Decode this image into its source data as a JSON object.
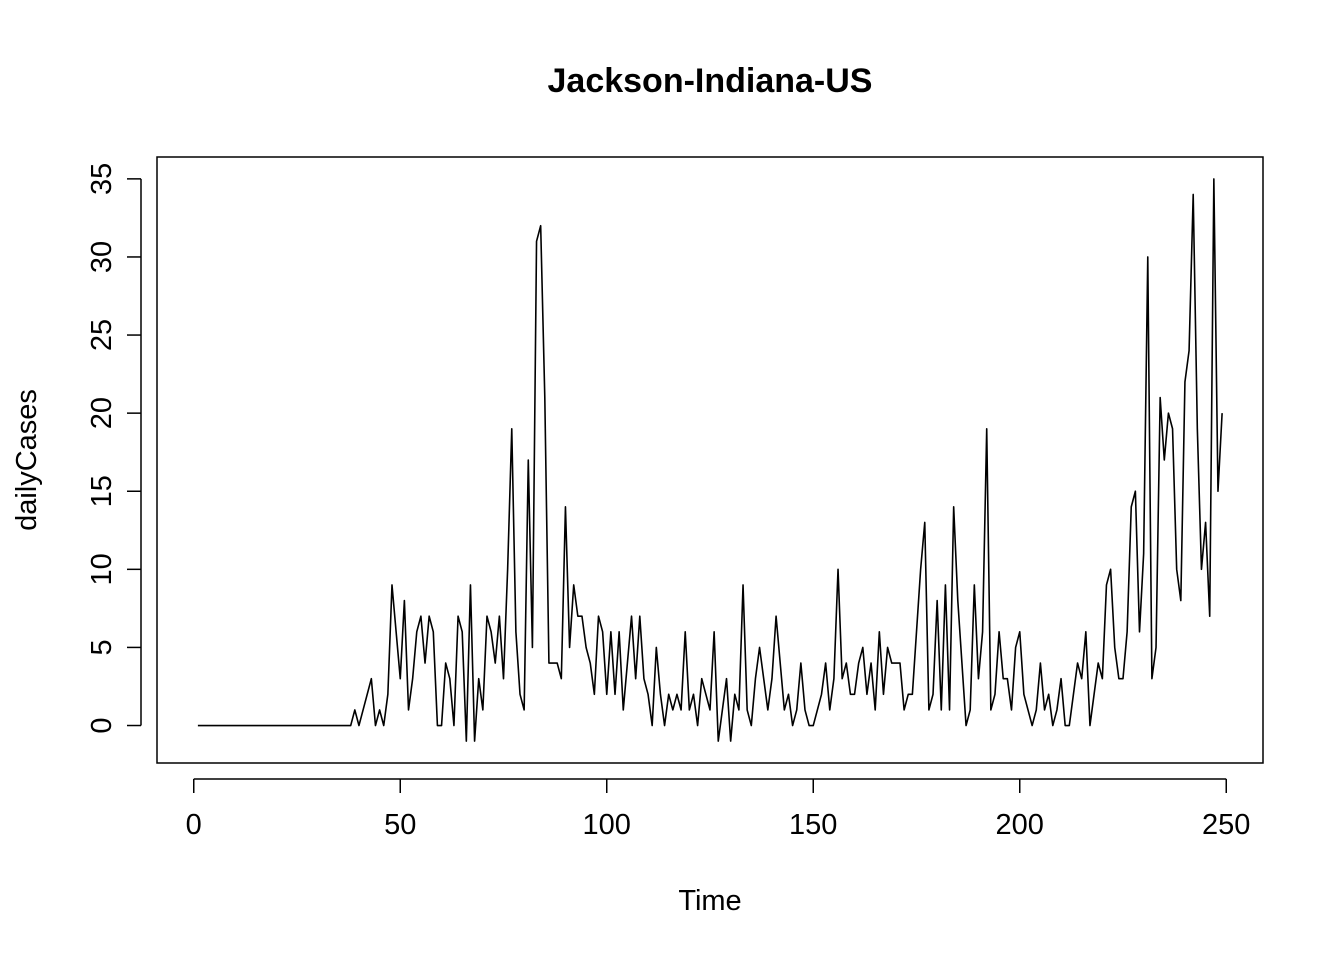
{
  "chart_data": {
    "type": "line",
    "title": "Jackson-Indiana-US",
    "xlabel": "Time",
    "ylabel": "dailyCases",
    "xlim": [
      -8.9,
      258.9
    ],
    "ylim": [
      -2.4,
      36.4
    ],
    "xticks": [
      0,
      50,
      100,
      150,
      200,
      250
    ],
    "yticks": [
      0,
      5,
      10,
      15,
      20,
      25,
      30,
      35
    ],
    "grid": false,
    "legend": "none",
    "line_color": "#000000",
    "series": [
      {
        "x_start": 1,
        "values": [
          0,
          0,
          0,
          0,
          0,
          0,
          0,
          0,
          0,
          0,
          0,
          0,
          0,
          0,
          0,
          0,
          0,
          0,
          0,
          0,
          0,
          0,
          0,
          0,
          0,
          0,
          0,
          0,
          0,
          0,
          0,
          0,
          0,
          0,
          0,
          0,
          0,
          0,
          1,
          0,
          1,
          2,
          3,
          0,
          1,
          0,
          2,
          9,
          6,
          3,
          8,
          1,
          3,
          6,
          7,
          4,
          7,
          6,
          0,
          0,
          4,
          3,
          0,
          7,
          6,
          -1,
          9,
          -1,
          3,
          1,
          7,
          6,
          4,
          7,
          3,
          10,
          19,
          6,
          2,
          1,
          17,
          5,
          31,
          32,
          21,
          4,
          4,
          4,
          3,
          14,
          5,
          9,
          7,
          7,
          5,
          4,
          2,
          7,
          6,
          2,
          6,
          2,
          6,
          1,
          4,
          7,
          3,
          7,
          3,
          2,
          0,
          5,
          2,
          0,
          2,
          1,
          2,
          1,
          6,
          1,
          2,
          0,
          3,
          2,
          1,
          6,
          -1,
          1,
          3,
          -1,
          2,
          1,
          9,
          1,
          0,
          3,
          5,
          3,
          1,
          3,
          7,
          4,
          1,
          2,
          0,
          1,
          4,
          1,
          0,
          0,
          1,
          2,
          4,
          1,
          3,
          10,
          3,
          4,
          2,
          2,
          4,
          5,
          2,
          4,
          1,
          6,
          2,
          5,
          4,
          4,
          4,
          1,
          2,
          2,
          6,
          10,
          13,
          1,
          2,
          8,
          1,
          9,
          1,
          14,
          8,
          4,
          0,
          1,
          9,
          3,
          6,
          19,
          1,
          2,
          6,
          3,
          3,
          1,
          5,
          6,
          2,
          1,
          0,
          1,
          4,
          1,
          2,
          0,
          1,
          3,
          0,
          0,
          2,
          4,
          3,
          6,
          0,
          2,
          4,
          3,
          9,
          10,
          5,
          3,
          3,
          6,
          14,
          15,
          6,
          11,
          30,
          3,
          5,
          21,
          17,
          20,
          19,
          10,
          8,
          22,
          24,
          34,
          19,
          10,
          13,
          7,
          35,
          15,
          20
        ]
      }
    ]
  }
}
